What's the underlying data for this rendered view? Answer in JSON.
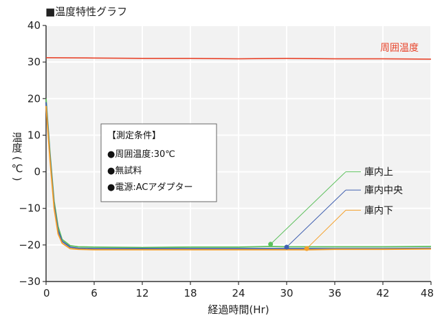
{
  "title": "■温度特性グラフ",
  "chart_data": {
    "type": "line",
    "xlabel": "経過時間(Hr)",
    "ylabel": "温度 (℃)",
    "ylabel_chars": [
      "温",
      "度",
      "(",
      "℃",
      ")"
    ],
    "xlim": [
      0,
      48
    ],
    "ylim": [
      -30,
      40
    ],
    "x_ticks": [
      0,
      6,
      12,
      18,
      24,
      30,
      36,
      42,
      48
    ],
    "y_ticks": [
      40,
      30,
      20,
      10,
      0,
      -10,
      -20,
      -30
    ],
    "y_tick_labels": [
      "40",
      "30",
      "20",
      "10",
      "0",
      "−10",
      "−20",
      "−30"
    ],
    "grid": true,
    "series": [
      {
        "name": "周囲温度",
        "color": "#e8452c",
        "x": [
          0,
          6,
          12,
          18,
          24,
          30,
          36,
          42,
          48
        ],
        "y": [
          31.2,
          31.1,
          31.0,
          31.0,
          30.9,
          31.0,
          30.9,
          30.9,
          30.8
        ]
      },
      {
        "name": "庫内上",
        "color": "#5cc05c",
        "x": [
          0,
          0.5,
          1,
          1.5,
          2,
          3,
          4,
          6,
          12,
          18,
          24,
          28,
          30,
          36,
          42,
          48
        ],
        "y": [
          20,
          5,
          -8,
          -15,
          -18.5,
          -20.2,
          -20.5,
          -20.6,
          -20.7,
          -20.6,
          -20.6,
          -20.4,
          -20.5,
          -20.5,
          -20.5,
          -20.4
        ]
      },
      {
        "name": "庫内中央",
        "color": "#4060b0",
        "x": [
          0,
          0.5,
          1,
          1.5,
          2,
          3,
          4,
          6,
          12,
          18,
          24,
          30,
          36,
          42,
          48
        ],
        "y": [
          19,
          4,
          -9,
          -16,
          -19,
          -20.6,
          -20.9,
          -21.0,
          -21.0,
          -21.0,
          -21.0,
          -21.0,
          -21.0,
          -21.0,
          -20.9
        ]
      },
      {
        "name": "庫内下",
        "color": "#f5a02a",
        "x": [
          0,
          0.5,
          1,
          1.5,
          2,
          3,
          4,
          6,
          12,
          18,
          24,
          30,
          33,
          36,
          42,
          48
        ],
        "y": [
          18,
          3,
          -10,
          -17,
          -19.5,
          -21.0,
          -21.2,
          -21.3,
          -21.3,
          -21.3,
          -21.3,
          -21.3,
          -21.3,
          -21.2,
          -21.2,
          -21.1
        ]
      }
    ],
    "markers": [
      {
        "series": "庫内上",
        "x": 28,
        "y": -19.8,
        "label_y": 0
      },
      {
        "series": "庫内中央",
        "x": 30,
        "y": -20.6,
        "label_y": -5
      },
      {
        "series": "庫内下",
        "x": 32.5,
        "y": -21.0,
        "label_y": -10.5
      }
    ],
    "annotation_label": "周囲温度",
    "conditions": {
      "heading": "【測定条件】",
      "lines": [
        "●周囲温度:30℃",
        "●無試料",
        "●電源:ACアダプター"
      ]
    }
  }
}
